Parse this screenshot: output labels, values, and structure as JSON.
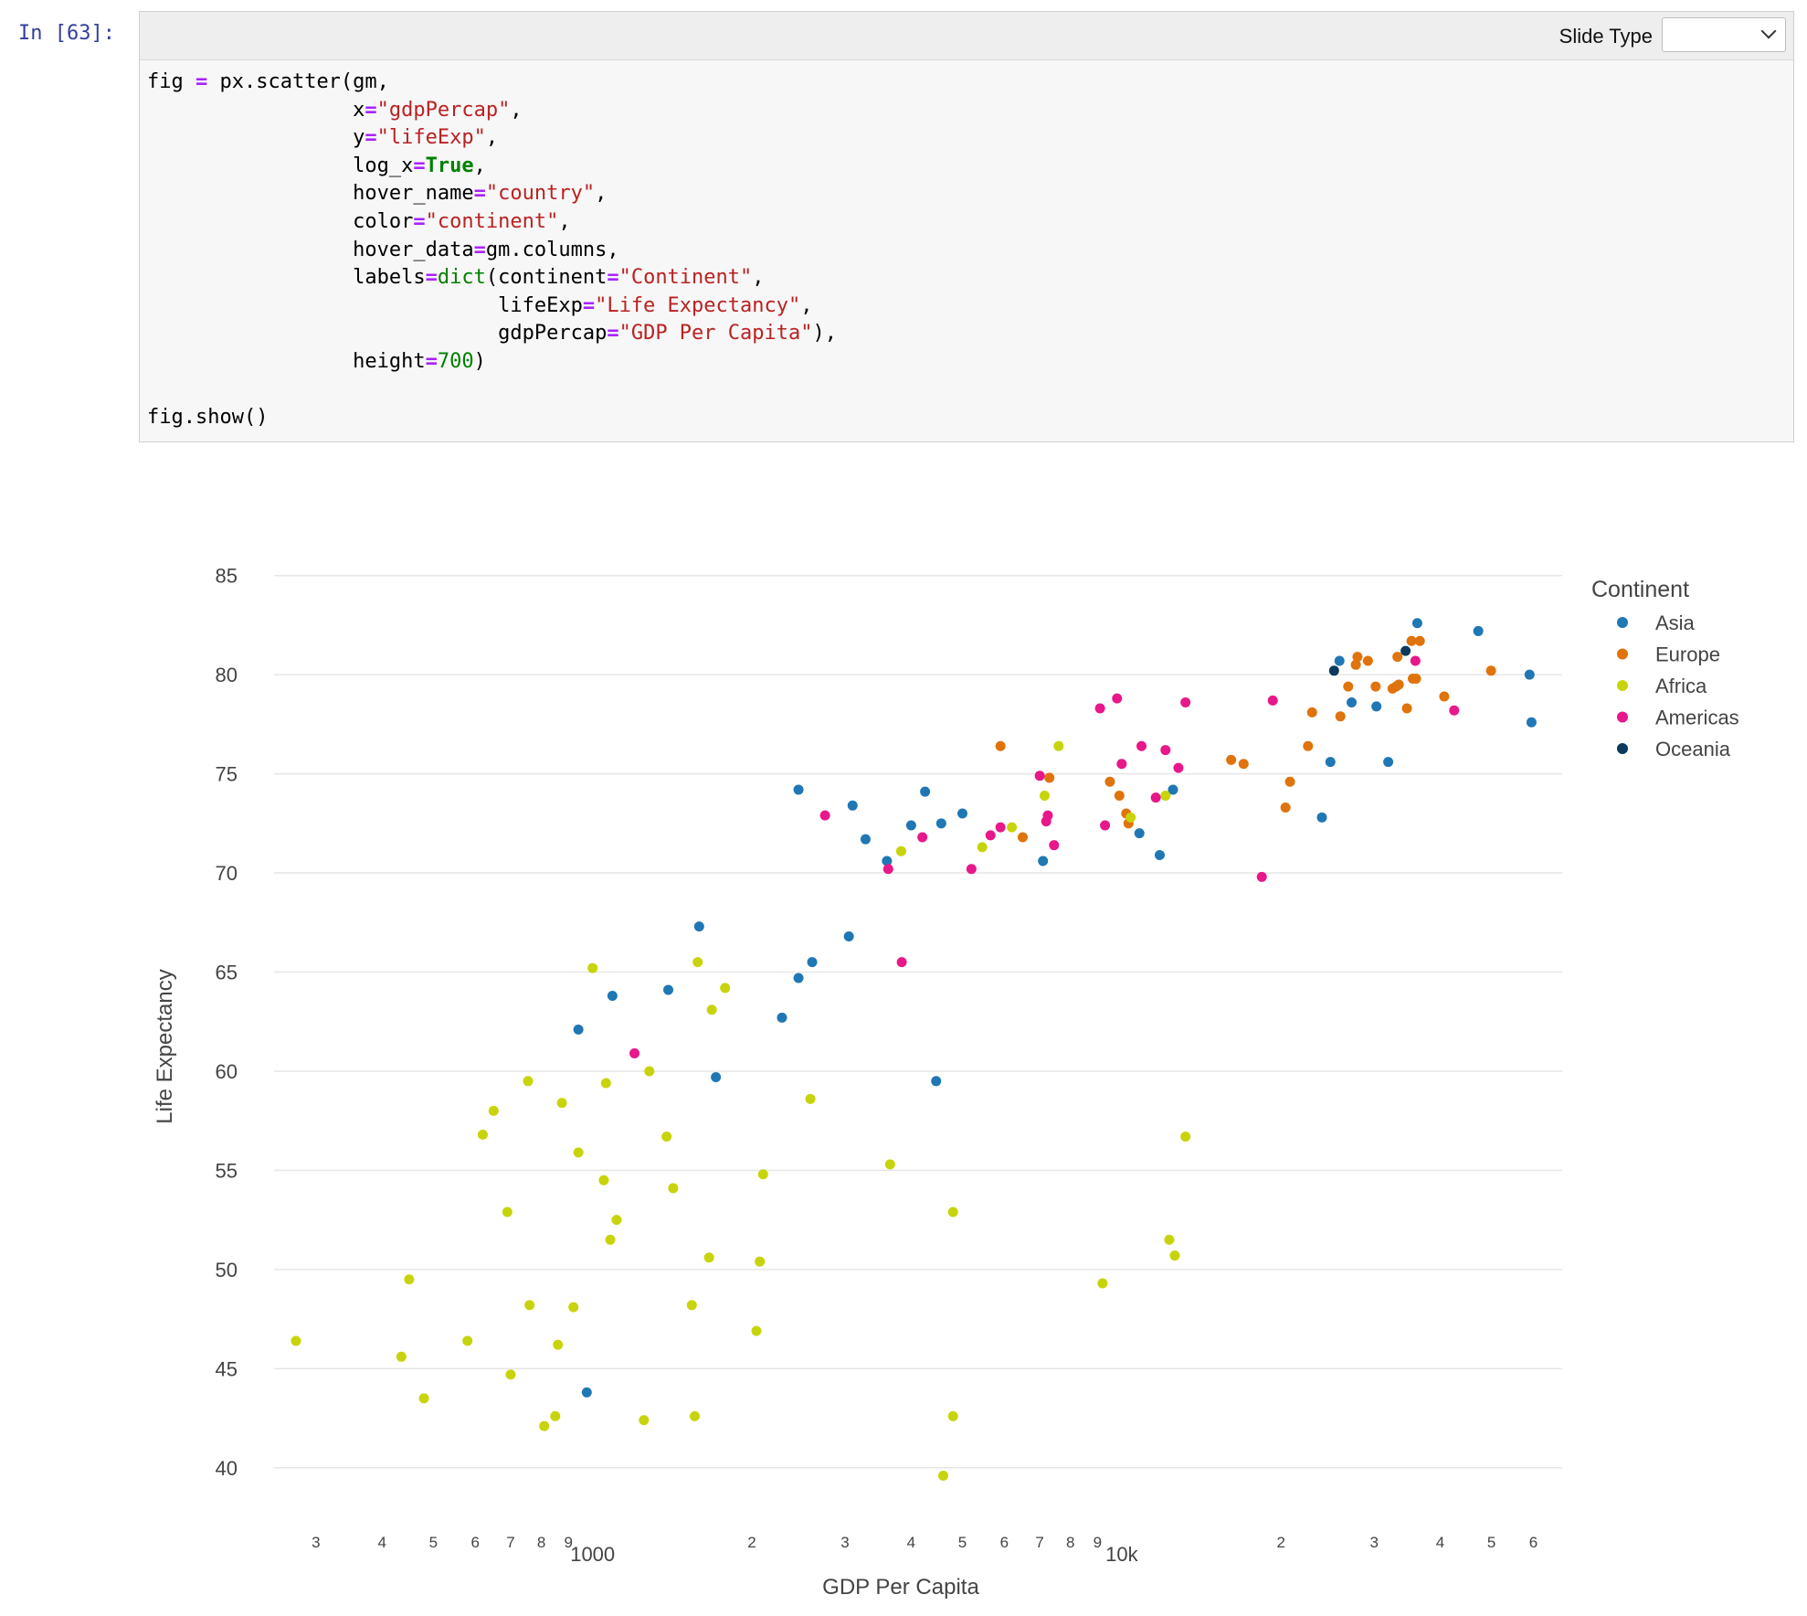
{
  "notebook": {
    "prompt": "In [63]:",
    "slide_type_label": "Slide Type",
    "slide_type_value": ""
  },
  "code": {
    "lines": [
      [
        [
          "fig ",
          ""
        ],
        [
          "=",
          "o"
        ],
        [
          " px.scatter(gm,",
          ""
        ]
      ],
      [
        [
          "                 x",
          ""
        ],
        [
          "=",
          "o"
        ],
        [
          "\"gdpPercap\"",
          "s"
        ],
        [
          ",",
          ""
        ]
      ],
      [
        [
          "                 y",
          ""
        ],
        [
          "=",
          "o"
        ],
        [
          "\"lifeExp\"",
          "s"
        ],
        [
          ",",
          ""
        ]
      ],
      [
        [
          "                 log_x",
          ""
        ],
        [
          "=",
          "o"
        ],
        [
          "True",
          "k"
        ],
        [
          ",",
          ""
        ]
      ],
      [
        [
          "                 hover_name",
          ""
        ],
        [
          "=",
          "o"
        ],
        [
          "\"country\"",
          "s"
        ],
        [
          ",",
          ""
        ]
      ],
      [
        [
          "                 color",
          ""
        ],
        [
          "=",
          "o"
        ],
        [
          "\"continent\"",
          "s"
        ],
        [
          ",",
          ""
        ]
      ],
      [
        [
          "                 hover_data",
          ""
        ],
        [
          "=",
          "o"
        ],
        [
          "gm.columns,",
          ""
        ]
      ],
      [
        [
          "                 labels",
          ""
        ],
        [
          "=",
          "o"
        ],
        [
          "dict",
          "b"
        ],
        [
          "(continent",
          ""
        ],
        [
          "=",
          "o"
        ],
        [
          "\"Continent\"",
          "s"
        ],
        [
          ",",
          ""
        ]
      ],
      [
        [
          "                             lifeExp",
          ""
        ],
        [
          "=",
          "o"
        ],
        [
          "\"Life Expectancy\"",
          "s"
        ],
        [
          ",",
          ""
        ]
      ],
      [
        [
          "                             gdpPercap",
          ""
        ],
        [
          "=",
          "o"
        ],
        [
          "\"GDP Per Capita\"",
          "s"
        ],
        [
          "),",
          ""
        ]
      ],
      [
        [
          "                 height",
          ""
        ],
        [
          "=",
          "o"
        ],
        [
          "700",
          "n"
        ],
        [
          ")",
          ""
        ]
      ],
      [
        [
          "",
          ""
        ]
      ],
      [
        [
          "fig.show()",
          ""
        ]
      ]
    ]
  },
  "chart_data": {
    "type": "scatter",
    "xlabel": "GDP Per Capita",
    "ylabel": "Life Expectancy",
    "xscale": "log",
    "xlim": [
      250,
      68000
    ],
    "ylim": [
      37.5,
      86
    ],
    "yticks": [
      40,
      45,
      50,
      55,
      60,
      65,
      70,
      75,
      80,
      85
    ],
    "xticks": [
      {
        "v": 300,
        "label": "3"
      },
      {
        "v": 400,
        "label": "4"
      },
      {
        "v": 500,
        "label": "5"
      },
      {
        "v": 600,
        "label": "6"
      },
      {
        "v": 700,
        "label": "7"
      },
      {
        "v": 800,
        "label": "8"
      },
      {
        "v": 900,
        "label": "9"
      },
      {
        "v": 2000,
        "label": "2"
      },
      {
        "v": 3000,
        "label": "3"
      },
      {
        "v": 4000,
        "label": "4"
      },
      {
        "v": 5000,
        "label": "5"
      },
      {
        "v": 6000,
        "label": "6"
      },
      {
        "v": 7000,
        "label": "7"
      },
      {
        "v": 8000,
        "label": "8"
      },
      {
        "v": 9000,
        "label": "9"
      },
      {
        "v": 20000,
        "label": "2"
      },
      {
        "v": 30000,
        "label": "3"
      },
      {
        "v": 40000,
        "label": "4"
      },
      {
        "v": 50000,
        "label": "5"
      },
      {
        "v": 60000,
        "label": "6"
      }
    ],
    "xmajor": [
      {
        "v": 1000,
        "label": "1000"
      },
      {
        "v": 10000,
        "label": "10k"
      }
    ],
    "grid": true,
    "legend_title": "Continent",
    "legend_position": "top-right",
    "series": [
      {
        "name": "Asia",
        "color": "#1f77b4",
        "points": [
          [
            36200,
            82.6
          ],
          [
            47200,
            82.2
          ],
          [
            25800,
            80.7
          ],
          [
            59000,
            80.0
          ],
          [
            30300,
            78.4
          ],
          [
            59500,
            77.6
          ],
          [
            31900,
            75.6
          ],
          [
            24800,
            75.6
          ],
          [
            23900,
            72.8
          ],
          [
            27200,
            78.6
          ],
          [
            2450,
            74.2
          ],
          [
            3100,
            73.4
          ],
          [
            3280,
            71.7
          ],
          [
            3600,
            70.6
          ],
          [
            4250,
            74.1
          ],
          [
            4000,
            72.4
          ],
          [
            4560,
            72.5
          ],
          [
            5000,
            73.0
          ],
          [
            10800,
            72.0
          ],
          [
            11800,
            70.9
          ],
          [
            12500,
            74.2
          ],
          [
            7100,
            70.6
          ],
          [
            1590,
            67.3
          ],
          [
            1390,
            64.1
          ],
          [
            2600,
            65.5
          ],
          [
            2450,
            64.7
          ],
          [
            3050,
            66.8
          ],
          [
            2280,
            62.7
          ],
          [
            1090,
            63.8
          ],
          [
            940,
            62.1
          ],
          [
            1710,
            59.7
          ],
          [
            4460,
            59.5
          ],
          [
            975,
            43.8
          ]
        ]
      },
      {
        "name": "Europe",
        "color": "#e0730b",
        "points": [
          [
            5900,
            76.4
          ],
          [
            7300,
            74.8
          ],
          [
            6500,
            71.8
          ],
          [
            9500,
            74.6
          ],
          [
            9900,
            73.9
          ],
          [
            10300,
            72.5
          ],
          [
            10200,
            73.0
          ],
          [
            16100,
            75.7
          ],
          [
            17000,
            75.5
          ],
          [
            20800,
            74.6
          ],
          [
            20400,
            73.3
          ],
          [
            22900,
            78.1
          ],
          [
            25900,
            77.9
          ],
          [
            26800,
            79.4
          ],
          [
            27900,
            80.9
          ],
          [
            27700,
            80.5
          ],
          [
            29200,
            80.7
          ],
          [
            30200,
            79.4
          ],
          [
            32500,
            79.3
          ],
          [
            33000,
            79.4
          ],
          [
            33400,
            79.5
          ],
          [
            33200,
            80.9
          ],
          [
            34600,
            78.3
          ],
          [
            35500,
            79.8
          ],
          [
            35300,
            81.7
          ],
          [
            36600,
            81.7
          ],
          [
            36000,
            79.8
          ],
          [
            40700,
            78.9
          ],
          [
            49900,
            80.2
          ],
          [
            22500,
            76.4
          ]
        ]
      },
      {
        "name": "Africa",
        "color": "#c8d40b",
        "points": [
          [
            275,
            46.4
          ],
          [
            435,
            45.6
          ],
          [
            450,
            49.5
          ],
          [
            480,
            43.5
          ],
          [
            620,
            56.8
          ],
          [
            650,
            58.0
          ],
          [
            580,
            46.4
          ],
          [
            690,
            52.9
          ],
          [
            700,
            44.7
          ],
          [
            760,
            48.2
          ],
          [
            755,
            59.5
          ],
          [
            810,
            42.1
          ],
          [
            850,
            42.6
          ],
          [
            860,
            46.2
          ],
          [
            875,
            58.4
          ],
          [
            920,
            48.1
          ],
          [
            940,
            55.9
          ],
          [
            1000,
            65.2
          ],
          [
            1050,
            54.5
          ],
          [
            1060,
            59.4
          ],
          [
            1080,
            51.5
          ],
          [
            1110,
            52.5
          ],
          [
            1250,
            42.4
          ],
          [
            1280,
            60.0
          ],
          [
            1380,
            56.7
          ],
          [
            1420,
            54.1
          ],
          [
            1540,
            48.2
          ],
          [
            1560,
            42.6
          ],
          [
            1580,
            65.5
          ],
          [
            1660,
            50.6
          ],
          [
            1680,
            63.1
          ],
          [
            1780,
            64.2
          ],
          [
            2040,
            46.9
          ],
          [
            2070,
            50.4
          ],
          [
            2100,
            54.8
          ],
          [
            2580,
            58.6
          ],
          [
            3650,
            55.3
          ],
          [
            3830,
            71.1
          ],
          [
            4600,
            39.6
          ],
          [
            4800,
            42.6
          ],
          [
            4800,
            52.9
          ],
          [
            5450,
            71.3
          ],
          [
            6200,
            72.3
          ],
          [
            7150,
            73.9
          ],
          [
            7600,
            76.4
          ],
          [
            9200,
            49.3
          ],
          [
            10400,
            72.8
          ],
          [
            12100,
            73.9
          ],
          [
            12300,
            51.5
          ],
          [
            12600,
            50.7
          ],
          [
            13200,
            56.7
          ]
        ]
      },
      {
        "name": "Americas",
        "color": "#e8178a",
        "points": [
          [
            2750,
            72.9
          ],
          [
            3620,
            70.2
          ],
          [
            4200,
            71.8
          ],
          [
            3840,
            65.5
          ],
          [
            1200,
            60.9
          ],
          [
            5200,
            70.2
          ],
          [
            5650,
            71.9
          ],
          [
            5900,
            72.3
          ],
          [
            7000,
            74.9
          ],
          [
            7250,
            72.9
          ],
          [
            7200,
            72.6
          ],
          [
            7450,
            71.4
          ],
          [
            9100,
            78.3
          ],
          [
            9300,
            72.4
          ],
          [
            9800,
            78.8
          ],
          [
            10000,
            75.5
          ],
          [
            10900,
            76.4
          ],
          [
            11600,
            73.8
          ],
          [
            12100,
            76.2
          ],
          [
            12800,
            75.3
          ],
          [
            13200,
            78.6
          ],
          [
            19300,
            78.7
          ],
          [
            18400,
            69.8
          ],
          [
            35900,
            80.7
          ],
          [
            42500,
            78.2
          ]
        ]
      },
      {
        "name": "Oceania",
        "color": "#0b3a5c",
        "points": [
          [
            25200,
            80.2
          ],
          [
            34400,
            81.2
          ]
        ]
      }
    ]
  }
}
